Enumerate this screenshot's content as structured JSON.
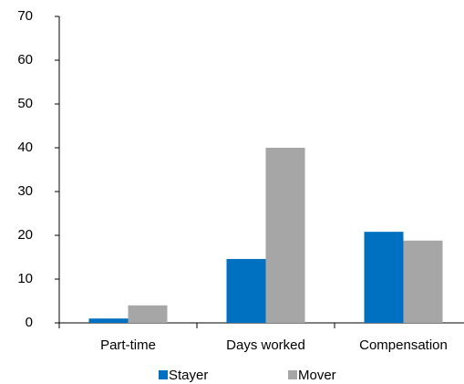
{
  "chart_data": {
    "type": "bar",
    "categories": [
      "Part-time",
      "Days worked",
      "Compensation"
    ],
    "series": [
      {
        "name": "Stayer",
        "color": "#0070c0",
        "values": [
          1.0,
          14.6,
          20.8
        ]
      },
      {
        "name": "Mover",
        "color": "#a6a6a6",
        "values": [
          4.0,
          40.0,
          18.8
        ]
      }
    ],
    "ylim": [
      0,
      70
    ],
    "yticks": [
      0,
      10,
      20,
      30,
      40,
      50,
      60,
      70
    ],
    "grid": false,
    "legend": "bottom"
  }
}
